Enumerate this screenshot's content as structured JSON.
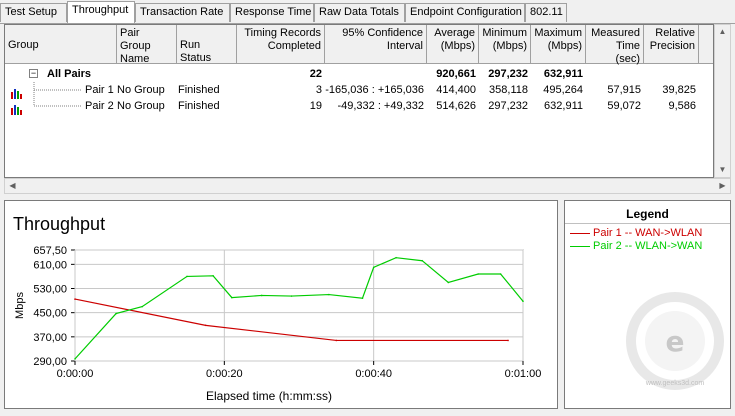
{
  "tabs": [
    {
      "label": "Test Setup",
      "active": false
    },
    {
      "label": "Throughput",
      "active": true
    },
    {
      "label": "Transaction Rate",
      "active": false
    },
    {
      "label": "Response Time",
      "active": false
    },
    {
      "label": "Raw Data Totals",
      "active": false
    },
    {
      "label": "Endpoint Configuration",
      "active": false
    },
    {
      "label": "802.11",
      "active": false
    }
  ],
  "table": {
    "headers": {
      "group": "Group",
      "pair_group_name": "Pair Group Name",
      "run_status": "Run Status",
      "timing_records": "Timing Records Completed",
      "confidence": "95% Confidence Interval",
      "average": "Average (Mbps)",
      "minimum": "Minimum (Mbps)",
      "maximum": "Maximum (Mbps)",
      "measured_time": "Measured Time (sec)",
      "relative_precision": "Relative Precision"
    },
    "all_pairs": {
      "expander": "−",
      "label": "All Pairs",
      "timing_records": "22",
      "average": "920,661",
      "minimum": "297,232",
      "maximum": "632,911"
    },
    "rows": [
      {
        "group": "Pair 1",
        "pair_group_name": "No Group",
        "run_status": "Finished",
        "timing_records": "3",
        "confidence": "-165,036 : +165,036",
        "average": "414,400",
        "minimum": "358,118",
        "maximum": "495,264",
        "measured_time": "57,915",
        "relative_precision": "39,825"
      },
      {
        "group": "Pair 2",
        "pair_group_name": "No Group",
        "run_status": "Finished",
        "timing_records": "19",
        "confidence": "-49,332 : +49,332",
        "average": "514,626",
        "minimum": "297,232",
        "maximum": "632,911",
        "measured_time": "59,072",
        "relative_precision": "9,586"
      }
    ]
  },
  "legend": {
    "title": "Legend",
    "items": [
      {
        "label": "Pair 1 -- WAN->WLAN",
        "color": "#cc0000"
      },
      {
        "label": "Pair 2 -- WLAN->WAN",
        "color": "#00cc00"
      }
    ]
  },
  "watermark": {
    "text": "www.geeks3d.com"
  },
  "chart_data": {
    "type": "line",
    "title": "Throughput",
    "xlabel": "Elapsed time (h:mm:ss)",
    "ylabel": "Mbps",
    "ylim": [
      290,
      657.5
    ],
    "xlim": [
      0,
      60
    ],
    "yticks": [
      "657,50",
      "610,00",
      "530,00",
      "450,00",
      "370,00",
      "290,00"
    ],
    "ytick_values": [
      657.5,
      610,
      530,
      450,
      370,
      290
    ],
    "xticks": [
      "0:00:00",
      "0:00:20",
      "0:00:40",
      "0:01:00"
    ],
    "xtick_values": [
      0,
      20,
      40,
      60
    ],
    "grid": true,
    "series": [
      {
        "name": "Pair 1 -- WAN->WLAN",
        "color": "#cc0000",
        "x": [
          0,
          17.5,
          35,
          58
        ],
        "y": [
          495,
          408,
          358,
          358
        ]
      },
      {
        "name": "Pair 2 -- WLAN->WAN",
        "color": "#00cc00",
        "x": [
          0,
          5.5,
          9,
          15,
          18.5,
          21,
          25,
          29,
          34,
          38.5,
          40,
          43,
          46.5,
          50,
          54,
          57,
          60
        ],
        "y": [
          297,
          447,
          470,
          570,
          572,
          500,
          507,
          505,
          510,
          498,
          600,
          632,
          622,
          550,
          578,
          578,
          488
        ]
      }
    ]
  }
}
